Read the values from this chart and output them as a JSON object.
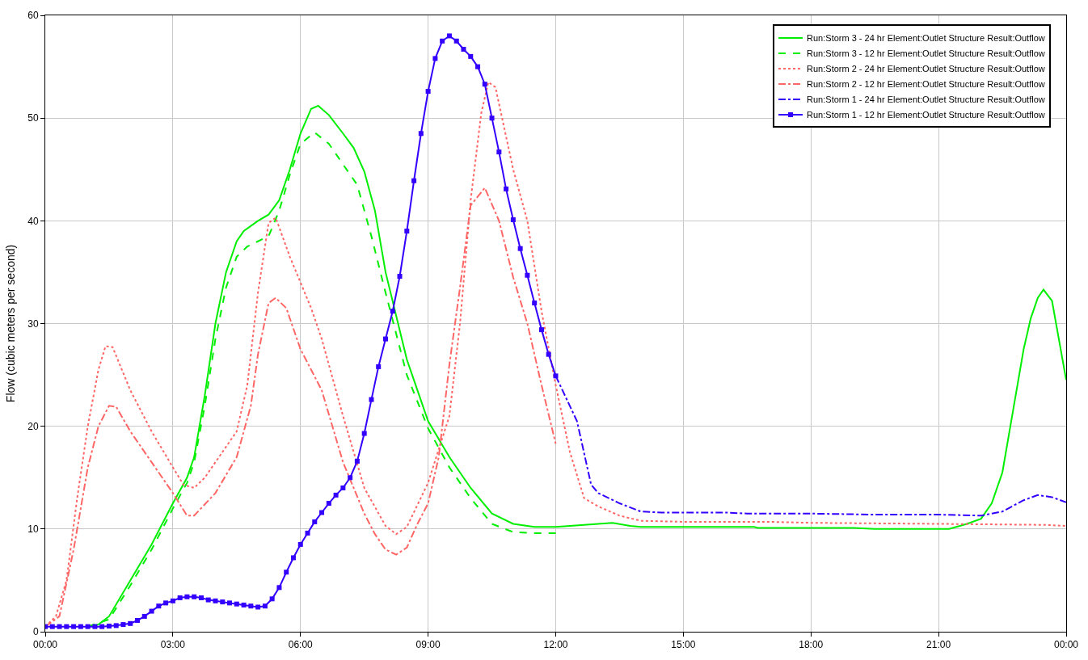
{
  "chart_data": {
    "type": "line",
    "ylabel": "Flow (cubic meters per second)",
    "xlim": [
      0,
      24
    ],
    "xticks": [
      {
        "value": 0,
        "label": "00:00"
      },
      {
        "value": 3,
        "label": "03:00"
      },
      {
        "value": 6,
        "label": "06:00"
      },
      {
        "value": 9,
        "label": "09:00"
      },
      {
        "value": 12,
        "label": "12:00"
      },
      {
        "value": 15,
        "label": "15:00"
      },
      {
        "value": 18,
        "label": "18:00"
      },
      {
        "value": 21,
        "label": "21:00"
      },
      {
        "value": 24,
        "label": "00:00"
      }
    ],
    "ylim": [
      0,
      60
    ],
    "yticks": [
      0,
      10,
      20,
      30,
      40,
      50,
      60
    ],
    "grid": true,
    "legend": "top right",
    "series": [
      {
        "name": "Run:Storm 3 - 24 hr Element:Outlet Structure Result:Outflow",
        "color": "#00ee00",
        "line_style": "solid",
        "x": [
          1,
          1.25,
          1.5,
          2,
          2.5,
          3,
          3.333,
          3.5,
          3.75,
          4,
          4.25,
          4.5,
          4.667,
          5,
          5.25,
          5.5,
          5.75,
          6,
          6.25,
          6.417,
          6.667,
          7,
          7.25,
          7.5,
          7.75,
          8,
          8.5,
          9,
          9.5,
          10,
          10.5,
          11,
          11.5,
          12,
          13,
          13.333,
          13.75,
          14,
          16.667,
          16.75,
          19,
          19.5,
          21,
          21.25,
          21.667,
          22,
          22.25,
          22.5,
          22.75,
          23,
          23.167,
          23.333,
          23.467,
          23.667,
          24
        ],
        "values": [
          0.5,
          0.7,
          1.5,
          5,
          8.5,
          12.5,
          15,
          17,
          23,
          30,
          35,
          38,
          39,
          40,
          40.6,
          42,
          45,
          48.5,
          50.9,
          51.2,
          50.3,
          48.5,
          47.1,
          44.8,
          41,
          35,
          26.5,
          20.5,
          17,
          14,
          11.5,
          10.5,
          10.2,
          10.2,
          10.5,
          10.6,
          10.3,
          10.2,
          10.2,
          10.1,
          10.1,
          10.0,
          10.0,
          10.0,
          10.5,
          11,
          12.5,
          15.5,
          21.5,
          27.5,
          30.5,
          32.5,
          33.3,
          32.2,
          24.5
        ]
      },
      {
        "name": "Run:Storm 3 - 12 hr Element:Outlet Structure Result:Outflow",
        "color": "#00ee00",
        "line_style": "dashed",
        "x": [
          1,
          1.5,
          2,
          2.5,
          3,
          3.333,
          3.5,
          3.75,
          4,
          4.25,
          4.5,
          4.75,
          5,
          5.25,
          5.5,
          5.75,
          6,
          6.333,
          6.667,
          7,
          7.333,
          7.667,
          8,
          8.5,
          9,
          9.5,
          10,
          10.5,
          11,
          11.5,
          12
        ],
        "values": [
          0.5,
          1.2,
          4.5,
          8,
          12,
          14.5,
          16.5,
          22,
          28.5,
          33.5,
          36.5,
          37.5,
          38,
          38.5,
          41,
          44.5,
          47.5,
          48.6,
          47.5,
          45.5,
          43.5,
          38.5,
          33,
          25,
          19.8,
          16,
          13,
          10.5,
          9.7,
          9.6,
          9.6
        ]
      },
      {
        "name": "Run:Storm 2 - 24 hr Element:Outlet Structure Result:Outflow",
        "color": "#ff6666",
        "line_style": "dotted",
        "x": [
          0,
          0.25,
          0.5,
          0.75,
          1,
          1.25,
          1.417,
          1.583,
          2,
          2.5,
          3,
          3.25,
          3.5,
          3.75,
          4,
          4.5,
          4.75,
          5,
          5.25,
          5.417,
          5.75,
          6.25,
          6.5,
          7,
          7.5,
          8,
          8.25,
          8.5,
          9,
          9.5,
          9.75,
          10,
          10.25,
          10.417,
          10.583,
          11,
          11.333,
          11.667,
          12,
          12.333,
          12.667,
          13,
          13.5,
          14,
          15,
          17,
          18,
          21,
          23.5,
          24
        ],
        "values": [
          0.5,
          1.5,
          5,
          13,
          20,
          25.5,
          27.8,
          27.7,
          23.5,
          19.5,
          16,
          14.3,
          14.0,
          15,
          16.5,
          19.5,
          24,
          33,
          39.8,
          40.3,
          36.5,
          31.5,
          28.5,
          21,
          14,
          10.3,
          9.5,
          10.2,
          14.5,
          21,
          30,
          42,
          50.5,
          53.5,
          53,
          45,
          40,
          31.2,
          24,
          17.5,
          13,
          12.2,
          11.3,
          10.8,
          10.7,
          10.7,
          10.6,
          10.5,
          10.4,
          10.3
        ]
      },
      {
        "name": "Run:Storm 2 - 12 hr Element:Outlet Structure Result:Outflow",
        "color": "#ff6666",
        "line_style": "dashdot",
        "x": [
          0,
          0.333,
          0.667,
          1,
          1.25,
          1.5,
          1.667,
          2,
          2.5,
          3,
          3.333,
          3.5,
          4,
          4.5,
          4.833,
          5,
          5.25,
          5.417,
          5.667,
          6,
          6.5,
          7,
          7.5,
          7.75,
          8,
          8.25,
          8.5,
          8.75,
          9,
          9.25,
          9.5,
          9.75,
          10,
          10.333,
          10.667,
          11,
          11.333,
          11.667,
          12
        ],
        "values": [
          0.5,
          1.5,
          8,
          16,
          20,
          22,
          21.9,
          19.5,
          16.5,
          13.5,
          11.3,
          11.3,
          13.5,
          17,
          22,
          27,
          32,
          32.5,
          31.5,
          27.5,
          23.5,
          16.5,
          11.5,
          9.5,
          8,
          7.5,
          8.2,
          10.5,
          12.5,
          17,
          26,
          33.5,
          41.5,
          43.2,
          40,
          34.5,
          30,
          24,
          18.3
        ]
      },
      {
        "name": "Run:Storm 1 - 24 hr Element:Outlet Structure Result:Outflow",
        "color": "#3300ff",
        "line_style": "dashdot",
        "x": [
          12,
          12.5,
          12.833,
          13,
          13.5,
          14,
          14.5,
          16,
          16.5,
          18,
          19.5,
          21,
          22,
          22.5,
          23,
          23.333,
          23.667,
          24
        ],
        "values": [
          24.9,
          20.5,
          14.3,
          13.5,
          12.5,
          11.7,
          11.6,
          11.6,
          11.5,
          11.5,
          11.4,
          11.4,
          11.3,
          11.7,
          12.8,
          13.3,
          13.1,
          12.6
        ]
      },
      {
        "name": "Run:Storm 1 - 12 hr Element:Outlet Structure Result:Outflow",
        "color": "#3300ff",
        "line_style": "solid",
        "marker": "square",
        "x": [
          0,
          0.167,
          0.333,
          0.5,
          0.667,
          0.833,
          1,
          1.167,
          1.333,
          1.5,
          1.667,
          1.833,
          2,
          2.167,
          2.333,
          2.5,
          2.667,
          2.833,
          3,
          3.167,
          3.333,
          3.5,
          3.667,
          3.833,
          4,
          4.167,
          4.333,
          4.5,
          4.667,
          4.833,
          5,
          5.167,
          5.333,
          5.5,
          5.667,
          5.833,
          6,
          6.167,
          6.333,
          6.5,
          6.667,
          6.833,
          7,
          7.167,
          7.333,
          7.5,
          7.667,
          7.833,
          8,
          8.167,
          8.333,
          8.5,
          8.667,
          8.833,
          9,
          9.167,
          9.333,
          9.5,
          9.667,
          9.833,
          10,
          10.167,
          10.333,
          10.5,
          10.667,
          10.833,
          11,
          11.167,
          11.333,
          11.5,
          11.667,
          11.833,
          12
        ],
        "values": [
          0.5,
          0.5,
          0.5,
          0.5,
          0.5,
          0.5,
          0.5,
          0.5,
          0.5,
          0.55,
          0.6,
          0.7,
          0.8,
          1.1,
          1.5,
          2.0,
          2.5,
          2.8,
          3.0,
          3.3,
          3.4,
          3.4,
          3.3,
          3.1,
          3.0,
          2.9,
          2.8,
          2.7,
          2.6,
          2.5,
          2.4,
          2.5,
          3.2,
          4.3,
          5.8,
          7.2,
          8.5,
          9.6,
          10.7,
          11.6,
          12.5,
          13.3,
          14.0,
          15.0,
          16.6,
          19.3,
          22.6,
          25.8,
          28.5,
          31.2,
          34.6,
          39.0,
          43.9,
          48.5,
          52.6,
          55.8,
          57.5,
          58.0,
          57.5,
          56.7,
          56.0,
          55.0,
          53.3,
          50.0,
          46.7,
          43.1,
          40.1,
          37.3,
          34.7,
          32.0,
          29.4,
          27.0,
          24.9
        ]
      }
    ]
  }
}
